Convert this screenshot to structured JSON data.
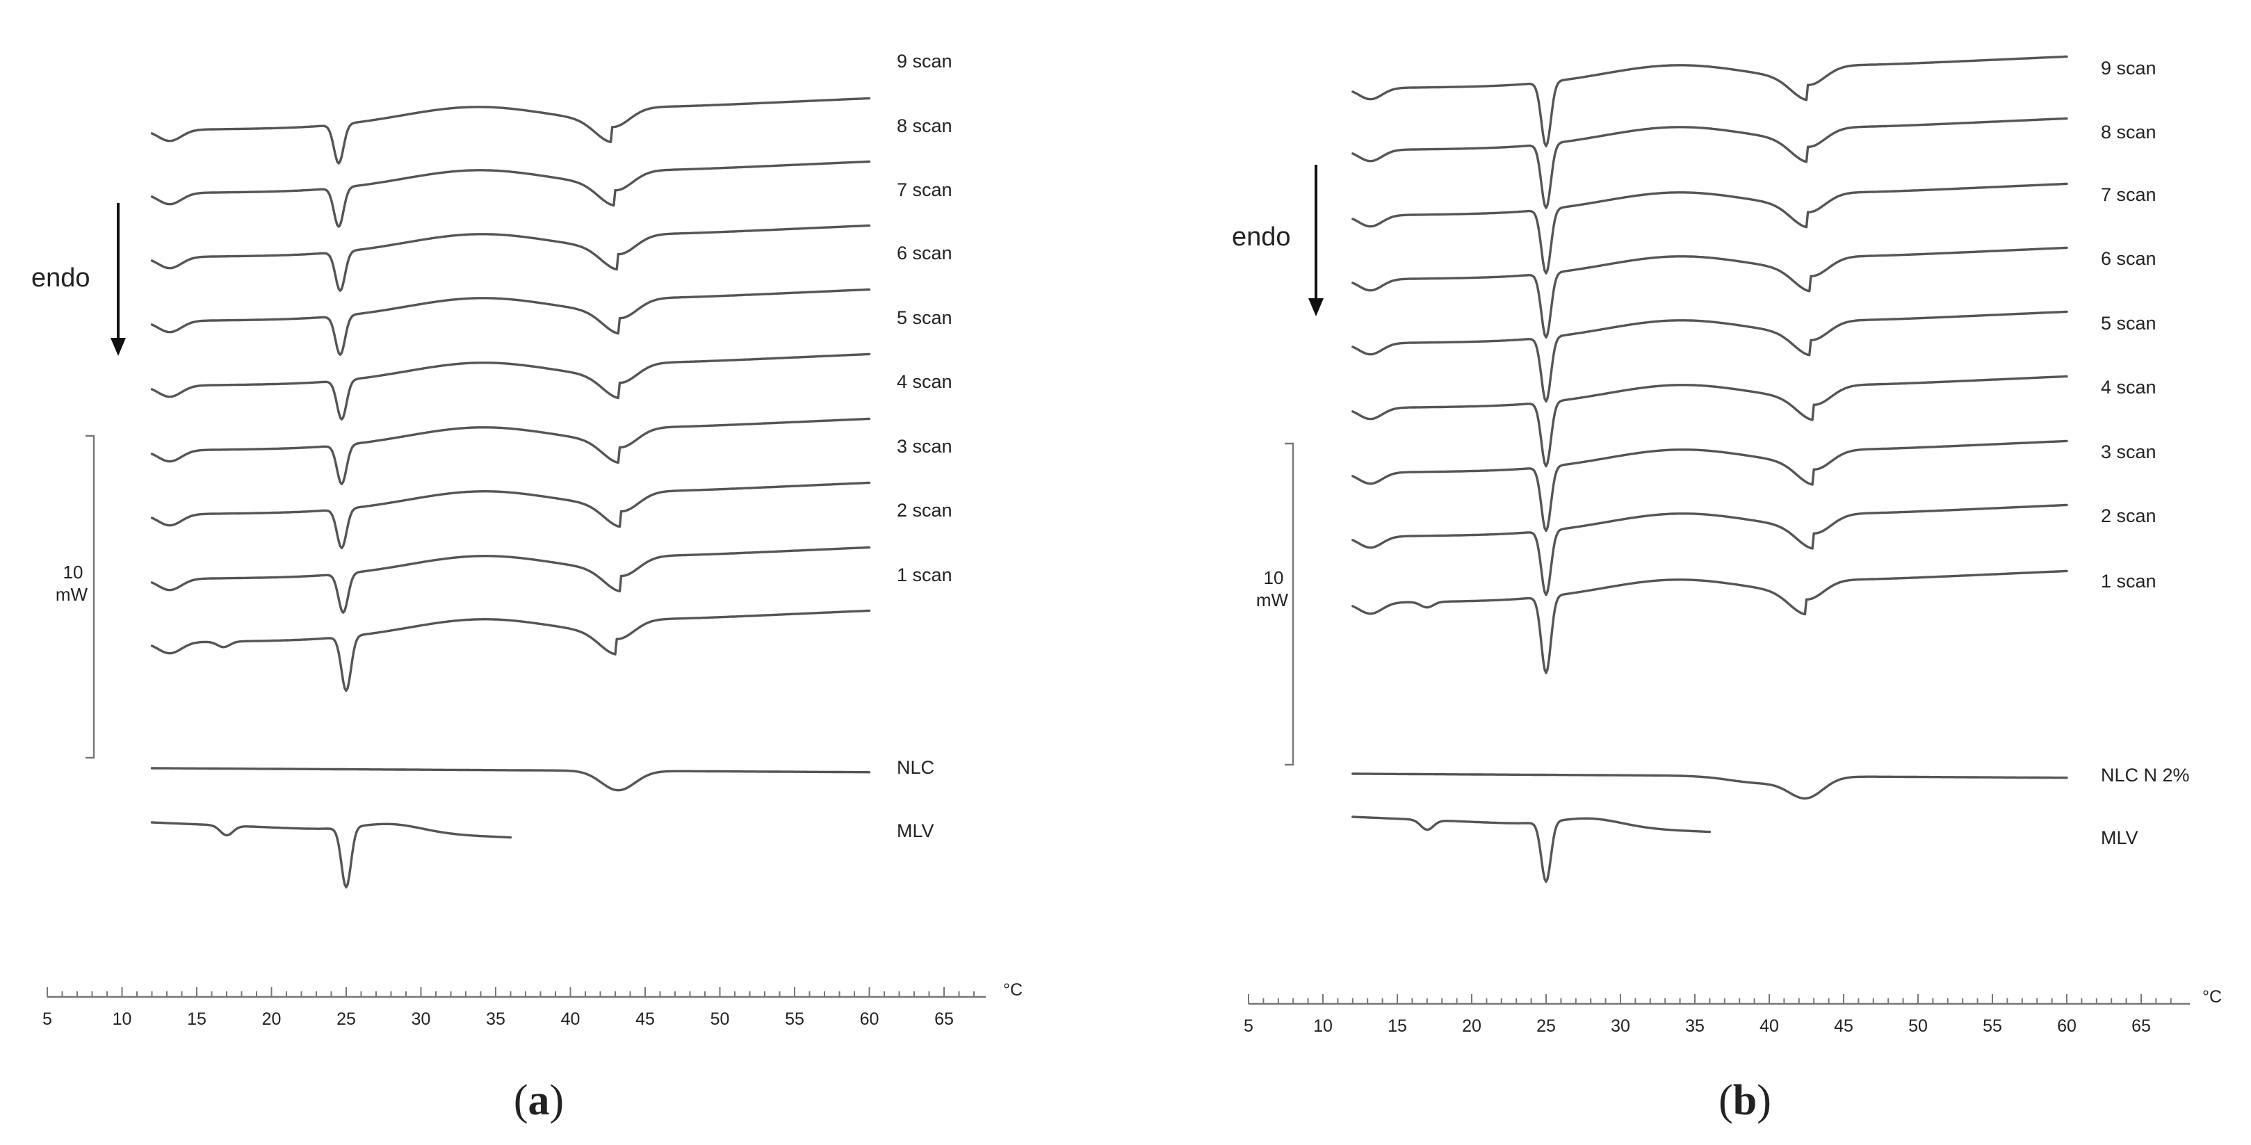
{
  "chart_data": [
    {
      "type": "line",
      "panel_label": "(a)",
      "panel_letter": "a",
      "x_unit": "°C",
      "x_ticks": [
        5,
        10,
        15,
        20,
        25,
        30,
        35,
        40,
        45,
        50,
        55,
        60,
        65
      ],
      "xlim": [
        5,
        67
      ],
      "endo_label": "endo",
      "scale_bar": {
        "value": "10",
        "unit": "mW"
      },
      "series": [
        {
          "name": "9 scan",
          "x_start": 12,
          "x_end": 60,
          "peaks": [
            24.5,
            42.8
          ]
        },
        {
          "name": "8 scan",
          "x_start": 12,
          "x_end": 60,
          "peaks": [
            24.5,
            43.0
          ]
        },
        {
          "name": "7 scan",
          "x_start": 12,
          "x_end": 60,
          "peaks": [
            24.6,
            43.2
          ]
        },
        {
          "name": "6 scan",
          "x_start": 12,
          "x_end": 60,
          "peaks": [
            24.6,
            43.3
          ]
        },
        {
          "name": "5 scan",
          "x_start": 12,
          "x_end": 60,
          "peaks": [
            24.7,
            43.3
          ]
        },
        {
          "name": "4 scan",
          "x_start": 12,
          "x_end": 60,
          "peaks": [
            24.7,
            43.3
          ]
        },
        {
          "name": "3 scan",
          "x_start": 12,
          "x_end": 60,
          "peaks": [
            24.7,
            43.4
          ]
        },
        {
          "name": "2 scan",
          "x_start": 12,
          "x_end": 60,
          "peaks": [
            24.8,
            43.4
          ]
        },
        {
          "name": "1 scan",
          "x_start": 12,
          "x_end": 60,
          "peaks": [
            16.8,
            25.0,
            43.1
          ]
        },
        {
          "name": "NLC",
          "x_start": 12,
          "x_end": 60,
          "peaks": [
            43.2
          ]
        },
        {
          "name": "MLV",
          "x_start": 12,
          "x_end": 36,
          "peaks": [
            17.0,
            25.0
          ]
        }
      ]
    },
    {
      "type": "line",
      "panel_label": "(b)",
      "panel_letter": "b",
      "x_unit": "°C",
      "x_ticks": [
        5,
        10,
        15,
        20,
        25,
        30,
        35,
        40,
        45,
        50,
        55,
        60,
        65
      ],
      "xlim": [
        5,
        67
      ],
      "endo_label": "endo",
      "scale_bar": {
        "value": "10",
        "unit": "mW"
      },
      "series": [
        {
          "name": "9 scan",
          "x_start": 12,
          "x_end": 60,
          "peaks": [
            25.0,
            42.6
          ]
        },
        {
          "name": "8 scan",
          "x_start": 12,
          "x_end": 60,
          "peaks": [
            25.0,
            42.6
          ]
        },
        {
          "name": "7 scan",
          "x_start": 12,
          "x_end": 60,
          "peaks": [
            25.0,
            42.6
          ]
        },
        {
          "name": "6 scan",
          "x_start": 12,
          "x_end": 60,
          "peaks": [
            25.0,
            42.8
          ]
        },
        {
          "name": "5 scan",
          "x_start": 12,
          "x_end": 60,
          "peaks": [
            25.0,
            42.8
          ]
        },
        {
          "name": "4 scan",
          "x_start": 12,
          "x_end": 60,
          "peaks": [
            25.0,
            43.0
          ]
        },
        {
          "name": "3 scan",
          "x_start": 12,
          "x_end": 60,
          "peaks": [
            25.0,
            43.0
          ]
        },
        {
          "name": "2 scan",
          "x_start": 12,
          "x_end": 60,
          "peaks": [
            25.0,
            43.0
          ]
        },
        {
          "name": "1 scan",
          "x_start": 12,
          "x_end": 60,
          "peaks": [
            17.0,
            25.0,
            42.5
          ]
        },
        {
          "name": "NLC N 2%",
          "x_start": 12,
          "x_end": 60,
          "peaks": [
            42.5
          ]
        },
        {
          "name": "MLV",
          "x_start": 12,
          "x_end": 36,
          "peaks": [
            17.0,
            25.0
          ]
        }
      ]
    }
  ]
}
